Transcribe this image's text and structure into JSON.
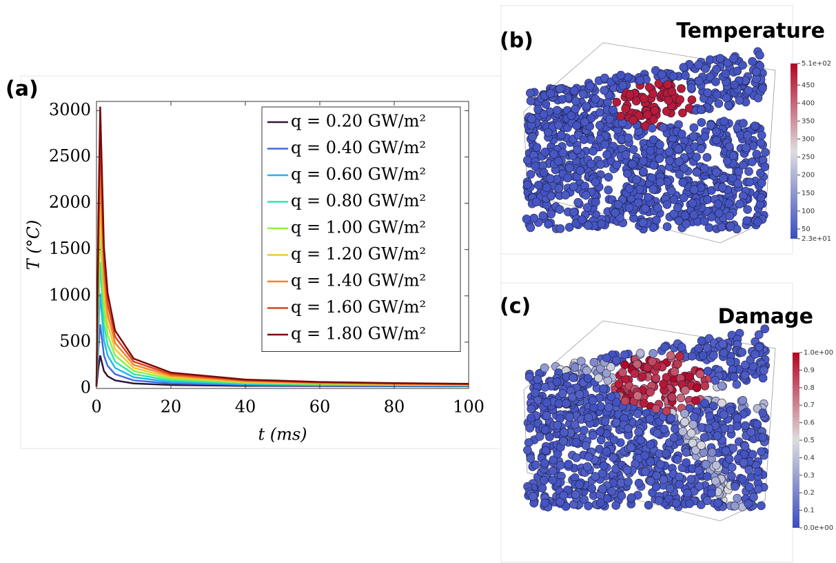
{
  "chart_data": [
    {
      "type": "line",
      "panel_label": "(a)",
      "xlabel": "t (ms)",
      "ylabel": "T (°C)",
      "xlim": [
        0,
        100
      ],
      "ylim": [
        0,
        3100
      ],
      "xticks": [
        0,
        20,
        40,
        60,
        80,
        100
      ],
      "yticks": [
        0,
        500,
        1000,
        1500,
        2000,
        2500,
        3000
      ],
      "grid": false,
      "legend": "upper right",
      "x": [
        0,
        0.5,
        1,
        2,
        3,
        5,
        10,
        20,
        40,
        60,
        80,
        100
      ],
      "series": [
        {
          "name": "q = 0.20 GW/m²",
          "color": "#2d1536",
          "values": [
            20,
            222,
            356,
            188,
            132,
            87,
            54,
            37,
            28,
            26,
            24,
            23
          ]
        },
        {
          "name": "q = 0.40 GW/m²",
          "color": "#4169e1",
          "values": [
            20,
            423,
            692,
            356,
            244,
            154,
            87,
            54,
            37,
            31,
            28,
            27
          ]
        },
        {
          "name": "q = 0.60 GW/m²",
          "color": "#1fb6f0",
          "values": [
            20,
            625,
            1028,
            524,
            356,
            222,
            121,
            70,
            45,
            37,
            33,
            30
          ]
        },
        {
          "name": "q = 0.80 GW/m²",
          "color": "#2fe5a6",
          "values": [
            20,
            826,
            1364,
            692,
            468,
            289,
            154,
            87,
            54,
            42,
            37,
            33
          ]
        },
        {
          "name": "q = 1.00 GW/m²",
          "color": "#8df040",
          "values": [
            20,
            1028,
            1700,
            860,
            580,
            356,
            188,
            104,
            62,
            48,
            41,
            37
          ]
        },
        {
          "name": "q = 1.20 GW/m²",
          "color": "#f2c531",
          "values": [
            20,
            1230,
            2036,
            1028,
            692,
            423,
            222,
            121,
            70,
            54,
            45,
            40
          ]
        },
        {
          "name": "q = 1.40 GW/m²",
          "color": "#f8832a",
          "values": [
            20,
            1431,
            2372,
            1196,
            804,
            490,
            255,
            138,
            79,
            59,
            49,
            44
          ]
        },
        {
          "name": "q = 1.60 GW/m²",
          "color": "#d9431c",
          "values": [
            20,
            1633,
            2708,
            1364,
            916,
            558,
            289,
            154,
            87,
            65,
            54,
            47
          ]
        },
        {
          "name": "q = 1.80 GW/m²",
          "color": "#7a0a0a",
          "values": [
            20,
            1834,
            3044,
            1532,
            1028,
            625,
            322,
            171,
            96,
            70,
            58,
            50
          ]
        }
      ]
    },
    {
      "type": "colorbar",
      "panel_label": "(b)",
      "title": "Temperature",
      "colormap": [
        "#3b4cc0",
        "#dddddd",
        "#b40426"
      ],
      "lim": [
        23,
        510
      ],
      "ticks": [
        {
          "value": 510,
          "label": "5.1e+02"
        },
        450,
        400,
        350,
        300,
        250,
        200,
        150,
        100,
        50,
        {
          "value": 23,
          "label": "2.3e+01"
        }
      ]
    },
    {
      "type": "colorbar",
      "panel_label": "(c)",
      "title": "Damage",
      "colormap": [
        "#3b4cc0",
        "#dddddd",
        "#b40426"
      ],
      "lim": [
        0,
        1
      ],
      "ticks": [
        {
          "value": 1,
          "label": "1.0e+00"
        },
        0.9,
        0.8,
        0.7,
        0.6,
        0.5,
        0.4,
        0.3,
        0.2,
        0.1,
        {
          "value": 0,
          "label": "0.0e+00"
        }
      ]
    }
  ]
}
